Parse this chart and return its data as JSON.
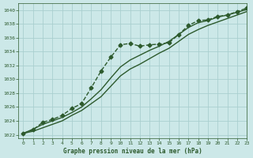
{
  "title": "Graphe pression niveau de la mer (hPa)",
  "background_color": "#cce8e8",
  "grid_color": "#aacfcf",
  "line_color": "#2d5a2d",
  "xlim": [
    -0.5,
    23
  ],
  "ylim": [
    1021.5,
    1041
  ],
  "yticks": [
    1022,
    1024,
    1026,
    1028,
    1030,
    1032,
    1034,
    1036,
    1038,
    1040
  ],
  "xticks": [
    0,
    1,
    2,
    3,
    4,
    5,
    6,
    7,
    8,
    9,
    10,
    11,
    12,
    13,
    14,
    15,
    16,
    17,
    18,
    19,
    20,
    21,
    22,
    23
  ],
  "series": [
    {
      "x": [
        0,
        1,
        2,
        3,
        4,
        5,
        6,
        7,
        8,
        9,
        10,
        11,
        12,
        13,
        14,
        15,
        16,
        17,
        18,
        19,
        20,
        21,
        22,
        23
      ],
      "y": [
        1022.2,
        1022.7,
        1023.8,
        1024.2,
        1024.8,
        1025.8,
        1026.5,
        1028.8,
        1031.2,
        1033.2,
        1035.0,
        1035.2,
        1034.8,
        1035.0,
        1035.1,
        1035.3,
        1036.5,
        1037.8,
        1038.5,
        1038.6,
        1039.1,
        1039.3,
        1039.8,
        1040.3
      ],
      "marker": "D",
      "marker_size": 2.5,
      "linewidth": 1.0,
      "linestyle": "--"
    },
    {
      "x": [
        0,
        1,
        2,
        3,
        4,
        5,
        6,
        7,
        8,
        9,
        10,
        11,
        12,
        13,
        14,
        15,
        16,
        17,
        18,
        19,
        20,
        21,
        22,
        23
      ],
      "y": [
        1022.2,
        1022.8,
        1023.5,
        1024.0,
        1024.5,
        1025.2,
        1026.0,
        1027.2,
        1028.5,
        1030.2,
        1031.8,
        1032.8,
        1033.5,
        1034.2,
        1034.8,
        1035.5,
        1036.5,
        1037.5,
        1038.2,
        1038.5,
        1039.0,
        1039.3,
        1039.7,
        1040.1
      ],
      "marker": null,
      "marker_size": 0,
      "linewidth": 1.0,
      "linestyle": "-"
    },
    {
      "x": [
        0,
        1,
        2,
        3,
        4,
        5,
        6,
        7,
        8,
        9,
        10,
        11,
        12,
        13,
        14,
        15,
        16,
        17,
        18,
        19,
        20,
        21,
        22,
        23
      ],
      "y": [
        1022.2,
        1022.5,
        1023.0,
        1023.5,
        1024.0,
        1024.8,
        1025.5,
        1026.5,
        1027.5,
        1029.0,
        1030.5,
        1031.5,
        1032.2,
        1033.0,
        1033.8,
        1034.5,
        1035.5,
        1036.5,
        1037.2,
        1037.8,
        1038.3,
        1038.8,
        1039.3,
        1039.8
      ],
      "marker": null,
      "marker_size": 0,
      "linewidth": 1.0,
      "linestyle": "-"
    }
  ]
}
